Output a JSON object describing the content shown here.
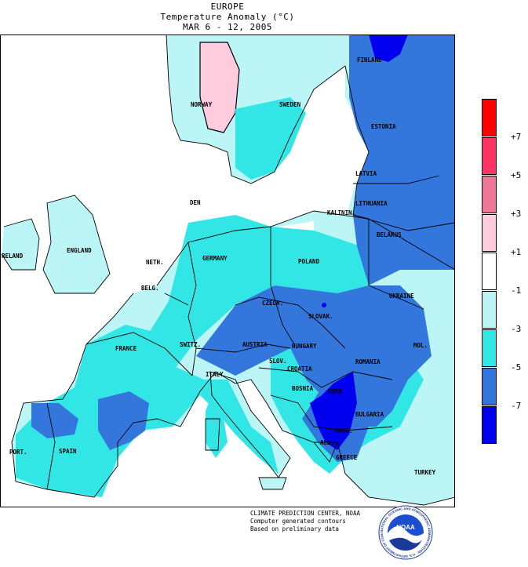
{
  "header": {
    "region": "EUROPE",
    "title": "Temperature Anomaly (°C)",
    "period": "MAR 6 - 12, 2005"
  },
  "legend": {
    "bins": [
      {
        "color": "#ff0000"
      },
      {
        "color": "#ff3366"
      },
      {
        "color": "#ee7799"
      },
      {
        "color": "#ffccdd"
      },
      {
        "color": "#ffffff"
      },
      {
        "color": "#bbf5f5"
      },
      {
        "color": "#33e6e6"
      },
      {
        "color": "#3377dd"
      },
      {
        "color": "#0000ee"
      }
    ],
    "ticks": [
      "+7",
      "+5",
      "+3",
      "+1",
      "-1",
      "-3",
      "-5",
      "-7"
    ]
  },
  "countries": {
    "finland": "FINLAND",
    "norway": "NORWAY",
    "sweden": "SWEDEN",
    "estonia": "ESTONIA",
    "latvia": "LATVIA",
    "lithuania": "LITHUANIA",
    "kaliningrad": "KALININ.",
    "belarus": "BELARUS",
    "denmark": "DEN",
    "ireland": "RELAND",
    "england": "ENGLAND",
    "netherlands": "NETH.",
    "belgium": "BELG.",
    "germany": "GERMANY",
    "poland": "POLAND",
    "ukraine": "UKRAINE",
    "czech": "CZECH.",
    "slovakia": "SLOVAK.",
    "moldova": "MOL.",
    "france": "FRANCE",
    "switzerland": "SWITZ.",
    "austria": "AUSTRIA",
    "hungary": "HUNGARY",
    "romania": "ROMANIA",
    "slovenia": "SLOV.",
    "croatia": "CROATIA",
    "italy": "ITALY",
    "bosnia": "BOSNIA",
    "serbia": "SERB.",
    "bulgaria": "BULGARIA",
    "macedonia": "MACE.",
    "albania": "ALB.",
    "greece": "GREECE",
    "turkey": "TURKEY",
    "portugal": "PORT.",
    "spain": "SPAIN"
  },
  "credits": {
    "line1": "CLIMATE PREDICTION CENTER, NOAA",
    "line2": "Computer generated contours",
    "line3": "Based on preliminary data"
  },
  "logo": {
    "text": "NOAA",
    "ring_text": "NATIONAL OCEANIC AND ATMOSPHERIC ADMINISTRATION · U.S. DEPARTMENT OF COMMERCE ·"
  }
}
